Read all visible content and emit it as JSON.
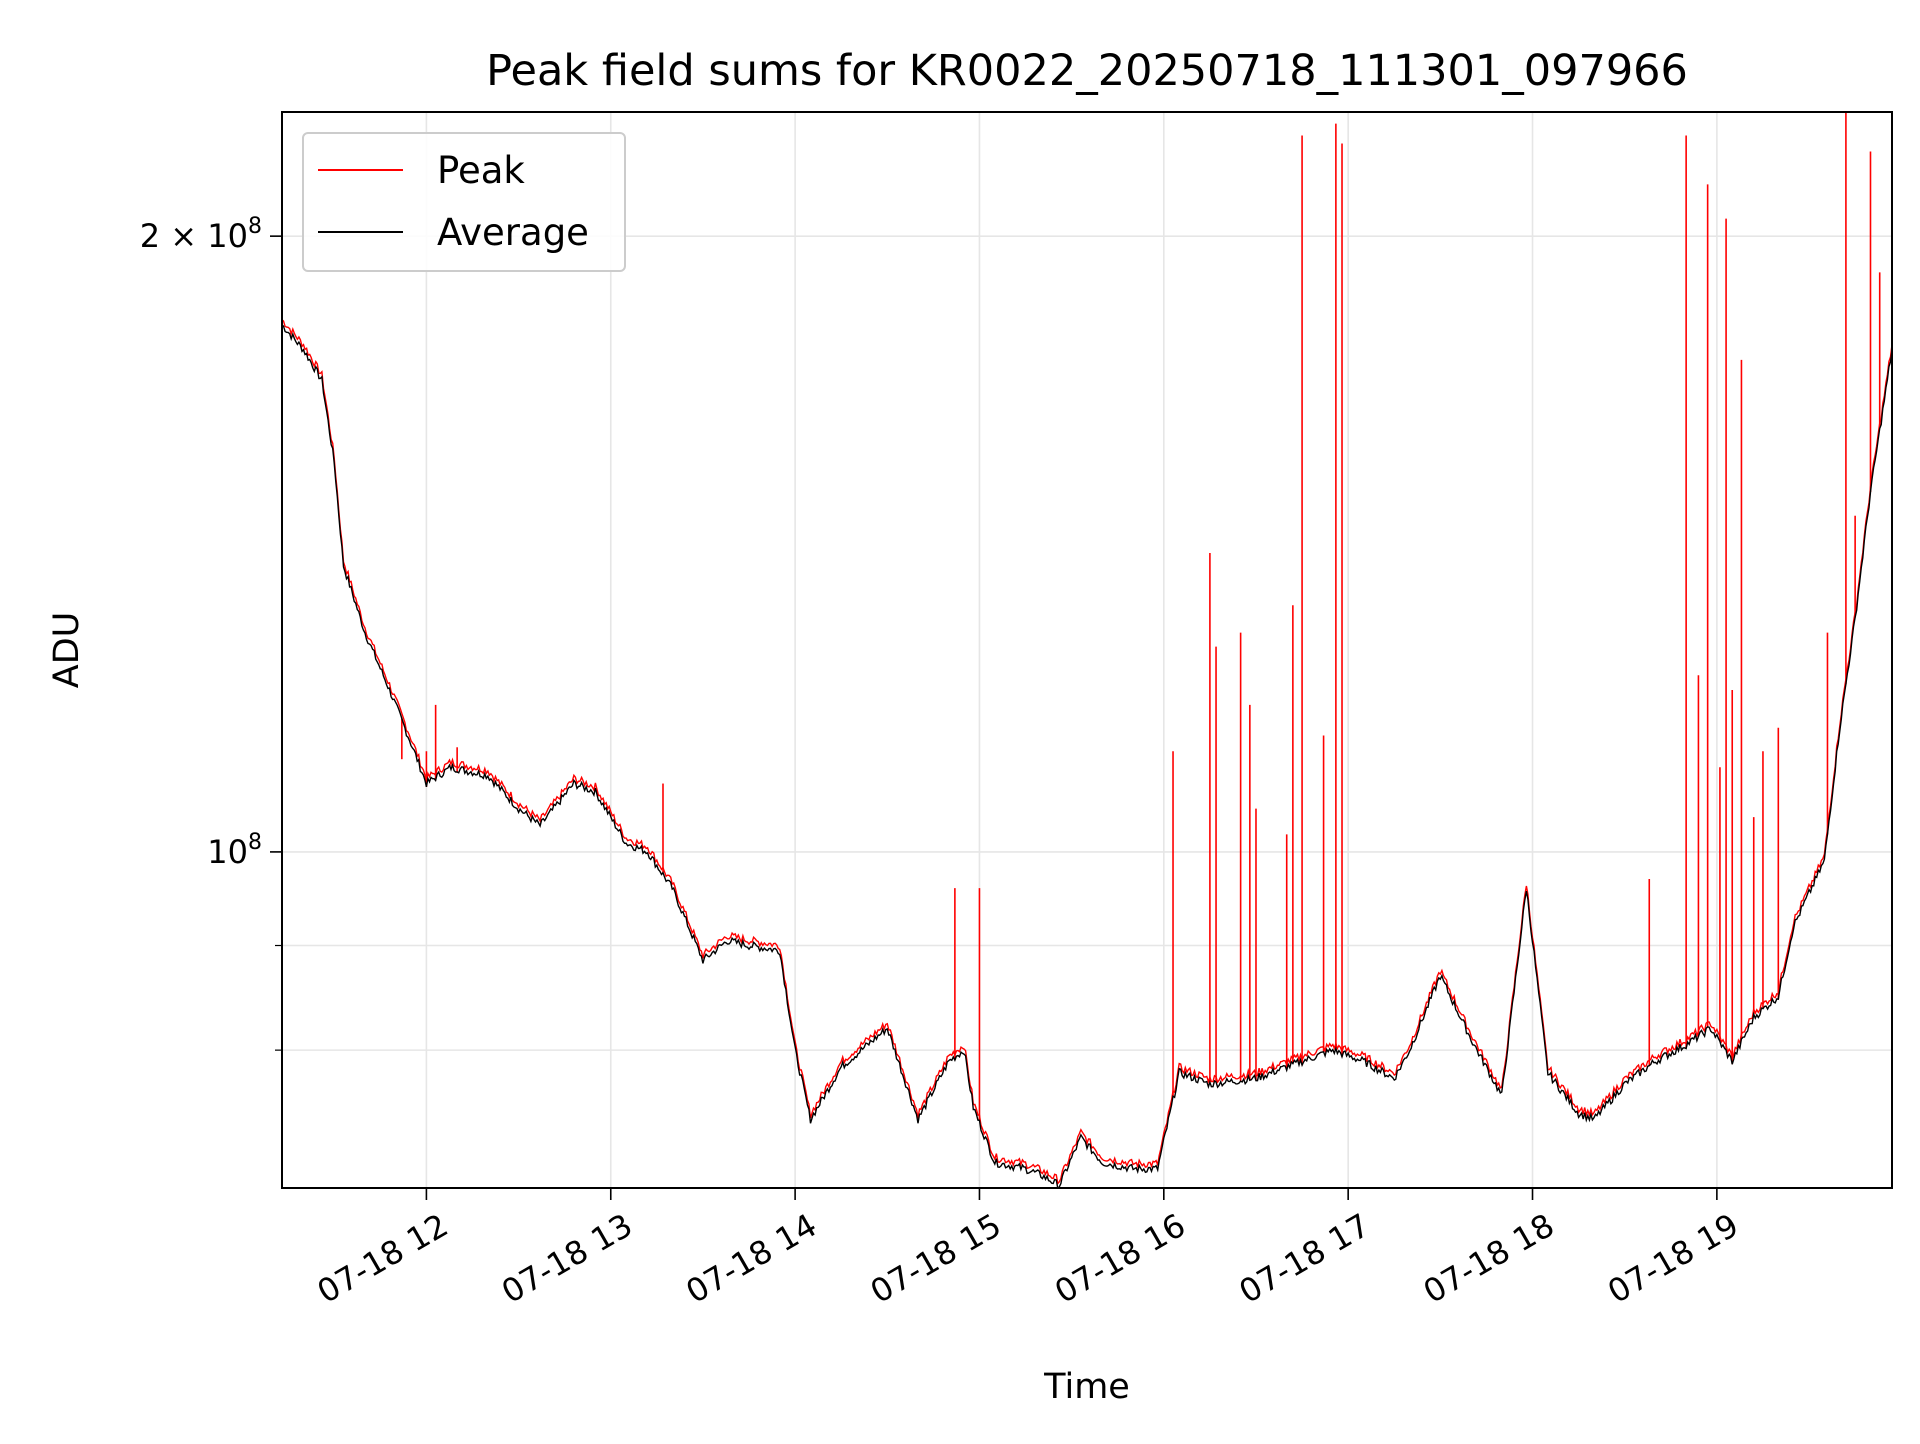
{
  "chart_data": {
    "type": "line",
    "title": "Peak field sums for KR0022_20250718_111301_097966",
    "xlabel": "Time",
    "ylabel": "ADU",
    "yscale": "log",
    "ylim": [
      68500000,
      230000000
    ],
    "xlim": [
      "2025-07-18 11:13",
      "2025-07-18 19:57"
    ],
    "grid": true,
    "legend_position": "top-left",
    "x_ticks": [
      {
        "t": "2025-07-18 12:00",
        "label": "07-18 12"
      },
      {
        "t": "2025-07-18 13:00",
        "label": "07-18 13"
      },
      {
        "t": "2025-07-18 14:00",
        "label": "07-18 14"
      },
      {
        "t": "2025-07-18 15:00",
        "label": "07-18 15"
      },
      {
        "t": "2025-07-18 16:00",
        "label": "07-18 16"
      },
      {
        "t": "2025-07-18 17:00",
        "label": "07-18 17"
      },
      {
        "t": "2025-07-18 18:00",
        "label": "07-18 18"
      },
      {
        "t": "2025-07-18 19:00",
        "label": "07-18 19"
      }
    ],
    "y_ticks_major": [
      {
        "value": 100000000,
        "base": "10",
        "exp": "8",
        "coef": ""
      },
      {
        "value": 200000000,
        "base": "10",
        "exp": "8",
        "coef": "2 × "
      }
    ],
    "y_ticks_minor": [
      80000000,
      90000000
    ],
    "series": [
      {
        "name": "Average",
        "color": "#000000",
        "points": [
          [
            "2025-07-18 11:13",
            181000000
          ],
          [
            "2025-07-18 11:20",
            176000000
          ],
          [
            "2025-07-18 11:26",
            170000000
          ],
          [
            "2025-07-18 11:30",
            155000000
          ],
          [
            "2025-07-18 11:33",
            138000000
          ],
          [
            "2025-07-18 11:40",
            128000000
          ],
          [
            "2025-07-18 11:48",
            120000000
          ],
          [
            "2025-07-18 11:55",
            113000000
          ],
          [
            "2025-07-18 12:00",
            108000000
          ],
          [
            "2025-07-18 12:08",
            110000000
          ],
          [
            "2025-07-18 12:20",
            109000000
          ],
          [
            "2025-07-18 12:30",
            105000000
          ],
          [
            "2025-07-18 12:37",
            103000000
          ],
          [
            "2025-07-18 12:48",
            108000000
          ],
          [
            "2025-07-18 12:55",
            107000000
          ],
          [
            "2025-07-18 13:05",
            101000000
          ],
          [
            "2025-07-18 13:12",
            100000000
          ],
          [
            "2025-07-18 13:20",
            96000000
          ],
          [
            "2025-07-18 13:30",
            88500000
          ],
          [
            "2025-07-18 13:38",
            90500000
          ],
          [
            "2025-07-18 13:45",
            90000000
          ],
          [
            "2025-07-18 13:55",
            89500000
          ],
          [
            "2025-07-18 14:00",
            80000000
          ],
          [
            "2025-07-18 14:05",
            74000000
          ],
          [
            "2025-07-18 14:15",
            78500000
          ],
          [
            "2025-07-18 14:30",
            82000000
          ],
          [
            "2025-07-18 14:40",
            74000000
          ],
          [
            "2025-07-18 14:50",
            79000000
          ],
          [
            "2025-07-18 14:55",
            80000000
          ],
          [
            "2025-07-18 14:58",
            75000000
          ],
          [
            "2025-07-18 15:05",
            70500000
          ],
          [
            "2025-07-18 15:15",
            70000000
          ],
          [
            "2025-07-18 15:20",
            69500000
          ],
          [
            "2025-07-18 15:26",
            68700000
          ],
          [
            "2025-07-18 15:33",
            72500000
          ],
          [
            "2025-07-18 15:40",
            70500000
          ],
          [
            "2025-07-18 15:50",
            70000000
          ],
          [
            "2025-07-18 15:58",
            70000000
          ],
          [
            "2025-07-18 16:05",
            78000000
          ],
          [
            "2025-07-18 16:15",
            77000000
          ],
          [
            "2025-07-18 16:30",
            77500000
          ],
          [
            "2025-07-18 16:45",
            79000000
          ],
          [
            "2025-07-18 16:55",
            80000000
          ],
          [
            "2025-07-18 17:05",
            79000000
          ],
          [
            "2025-07-18 17:15",
            77500000
          ],
          [
            "2025-07-18 17:20",
            80000000
          ],
          [
            "2025-07-18 17:30",
            87000000
          ],
          [
            "2025-07-18 17:40",
            81000000
          ],
          [
            "2025-07-18 17:50",
            76000000
          ],
          [
            "2025-07-18 17:58",
            96000000
          ],
          [
            "2025-07-18 18:05",
            78000000
          ],
          [
            "2025-07-18 18:15",
            74500000
          ],
          [
            "2025-07-18 18:20",
            74000000
          ],
          [
            "2025-07-18 18:30",
            77000000
          ],
          [
            "2025-07-18 18:40",
            79000000
          ],
          [
            "2025-07-18 18:50",
            80500000
          ],
          [
            "2025-07-18 18:58",
            82000000
          ],
          [
            "2025-07-18 19:05",
            79000000
          ],
          [
            "2025-07-18 19:12",
            83000000
          ],
          [
            "2025-07-18 19:20",
            85000000
          ],
          [
            "2025-07-18 19:25",
            92000000
          ],
          [
            "2025-07-18 19:35",
            99000000
          ],
          [
            "2025-07-18 19:40",
            115000000
          ],
          [
            "2025-07-18 19:45",
            130000000
          ],
          [
            "2025-07-18 19:50",
            150000000
          ],
          [
            "2025-07-18 19:57",
            176000000
          ]
        ]
      },
      {
        "name": "Peak",
        "color": "#ff0000",
        "spikes": [
          [
            "2025-07-18 11:52",
            111000000
          ],
          [
            "2025-07-18 12:00",
            112000000
          ],
          [
            "2025-07-18 12:03",
            118000000
          ],
          [
            "2025-07-18 12:10",
            112500000
          ],
          [
            "2025-07-18 13:17",
            108000000
          ],
          [
            "2025-07-18 14:52",
            96000000
          ],
          [
            "2025-07-18 15:00",
            96000000
          ],
          [
            "2025-07-18 16:03",
            112000000
          ],
          [
            "2025-07-18 16:15",
            140000000
          ],
          [
            "2025-07-18 16:17",
            126000000
          ],
          [
            "2025-07-18 16:25",
            128000000
          ],
          [
            "2025-07-18 16:28",
            118000000
          ],
          [
            "2025-07-18 16:30",
            105000000
          ],
          [
            "2025-07-18 16:40",
            102000000
          ],
          [
            "2025-07-18 16:42",
            132000000
          ],
          [
            "2025-07-18 16:45",
            224000000
          ],
          [
            "2025-07-18 16:52",
            114000000
          ],
          [
            "2025-07-18 16:56",
            227000000
          ],
          [
            "2025-07-18 16:58",
            222000000
          ],
          [
            "2025-07-18 18:38",
            97000000
          ],
          [
            "2025-07-18 18:50",
            224000000
          ],
          [
            "2025-07-18 18:54",
            122000000
          ],
          [
            "2025-07-18 18:57",
            212000000
          ],
          [
            "2025-07-18 19:01",
            110000000
          ],
          [
            "2025-07-18 19:03",
            204000000
          ],
          [
            "2025-07-18 19:05",
            120000000
          ],
          [
            "2025-07-18 19:08",
            174000000
          ],
          [
            "2025-07-18 19:12",
            104000000
          ],
          [
            "2025-07-18 19:15",
            112000000
          ],
          [
            "2025-07-18 19:20",
            115000000
          ],
          [
            "2025-07-18 19:36",
            128000000
          ],
          [
            "2025-07-18 19:42",
            233000000
          ],
          [
            "2025-07-18 19:45",
            146000000
          ],
          [
            "2025-07-18 19:50",
            220000000
          ],
          [
            "2025-07-18 19:53",
            192000000
          ]
        ]
      }
    ]
  }
}
